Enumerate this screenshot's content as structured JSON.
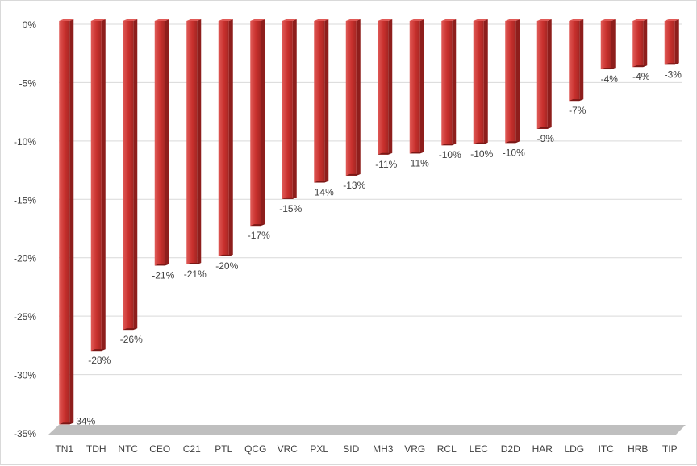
{
  "chart_data": {
    "type": "bar",
    "title": "",
    "xlabel": "",
    "ylabel": "",
    "ylim": [
      -35,
      0
    ],
    "yticks": [
      0,
      -5,
      -10,
      -15,
      -20,
      -25,
      -30,
      -35
    ],
    "ytick_labels": [
      "0%",
      "-5%",
      "-10%",
      "-15%",
      "-20%",
      "-25%",
      "-30%",
      "-35%"
    ],
    "grid": true,
    "legend": "none",
    "bar_style": "3d-column",
    "colors": {
      "bar_front": "#c8302d",
      "bar_side": "#8e1e1c",
      "bar_top": "#e05a57",
      "grid": "#d9d9d9",
      "floor": "#bfbfbf"
    },
    "categories": [
      "TN1",
      "TDH",
      "NTC",
      "CEO",
      "C21",
      "PTL",
      "QCG",
      "VRC",
      "PXL",
      "SID",
      "MH3",
      "VRG",
      "RCL",
      "LEC",
      "D2D",
      "HAR",
      "LDG",
      "ITC",
      "HRB",
      "TIP"
    ],
    "values": [
      -34.2,
      -27.9,
      -26.1,
      -20.6,
      -20.5,
      -19.8,
      -17.2,
      -14.9,
      -13.5,
      -12.9,
      -11.1,
      -11.0,
      -10.3,
      -10.2,
      -10.1,
      -8.9,
      -6.5,
      -3.8,
      -3.6,
      -3.4
    ],
    "data_labels": [
      "-34%",
      "-28%",
      "-26%",
      "-21%",
      "-21%",
      "-20%",
      "-17%",
      "-15%",
      "-14%",
      "-13%",
      "-11%",
      "-11%",
      "-10%",
      "-10%",
      "-10%",
      "-9%",
      "-7%",
      "-4%",
      "-4%",
      "-3%"
    ]
  }
}
